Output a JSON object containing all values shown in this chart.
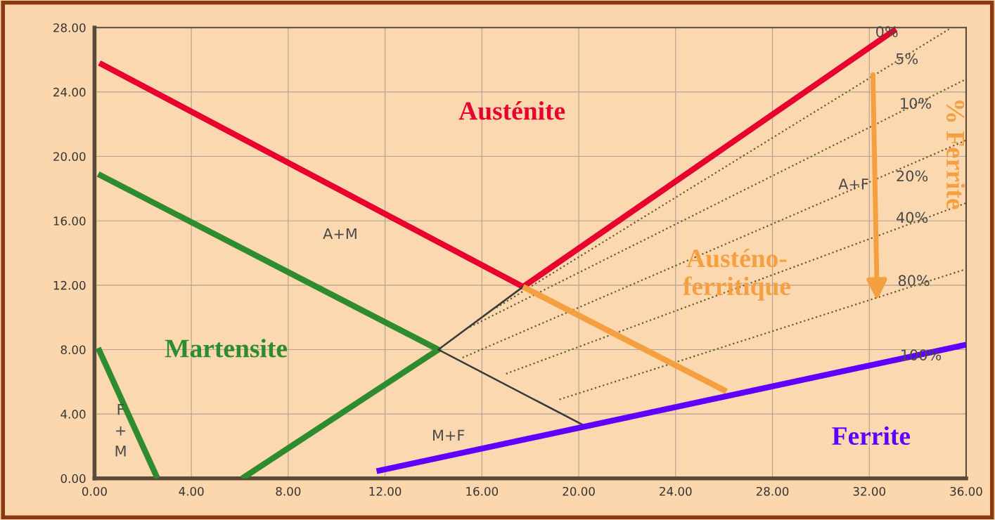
{
  "chart_data": {
    "type": "line",
    "xlim": [
      0,
      36
    ],
    "ylim": [
      0,
      28
    ],
    "xticks": [
      {
        "value": 0,
        "label": "0.00"
      },
      {
        "value": 4,
        "label": "4.00"
      },
      {
        "value": 8,
        "label": "8.00"
      },
      {
        "value": 12,
        "label": "12.00"
      },
      {
        "value": 16,
        "label": "16.00"
      },
      {
        "value": 20,
        "label": "20.00"
      },
      {
        "value": 24,
        "label": "24.00"
      },
      {
        "value": 28,
        "label": "28.00"
      },
      {
        "value": 32,
        "label": "32.00"
      },
      {
        "value": 36,
        "label": "36.00"
      }
    ],
    "yticks": [
      {
        "value": 0,
        "label": "0.00"
      },
      {
        "value": 4,
        "label": "4.00"
      },
      {
        "value": 8,
        "label": "8.00"
      },
      {
        "value": 12,
        "label": "12.00"
      },
      {
        "value": 16,
        "label": "16.00"
      },
      {
        "value": 20,
        "label": "20.00"
      },
      {
        "value": 24,
        "label": "24.00"
      },
      {
        "value": 28,
        "label": "28.00"
      }
    ],
    "grid": true,
    "marker": "none",
    "y2label": "% Ferrite",
    "series": [
      {
        "color": "#e8002e",
        "x": [
          0.2,
          17.7,
          33.1
        ],
        "values": [
          25.8,
          11.9,
          27.9
        ],
        "line_style": "solid"
      },
      {
        "color": "#2e8b2e",
        "x": [
          0.15,
          14.2,
          6.1
        ],
        "values": [
          18.9,
          8.0,
          0
        ],
        "line_style": "solid"
      },
      {
        "color": "#2e8b2e",
        "x": [
          0.15,
          2.6
        ],
        "values": [
          8.1,
          0
        ],
        "line_style": "solid"
      },
      {
        "color": "#3a3a3a",
        "x": [
          17.7,
          14.2,
          20.2
        ],
        "values": [
          11.9,
          8.0,
          3.3
        ],
        "line_style": "solid"
      },
      {
        "color": "#f5a040",
        "x": [
          17.7,
          26.1
        ],
        "values": [
          11.9,
          5.4
        ],
        "line_style": "solid"
      },
      {
        "color": "#6000ff",
        "x": [
          11.65,
          36
        ],
        "values": [
          0.45,
          8.3
        ],
        "line_style": "solid"
      },
      {
        "color": "#6b5a2a",
        "x": [
          16.6,
          35.4
        ],
        "values": [
          10.6,
          28.0
        ],
        "line_style": "dotted"
      },
      {
        "color": "#6b5a2a",
        "x": [
          15.5,
          36
        ],
        "values": [
          9.4,
          24.8
        ],
        "line_style": "dotted"
      },
      {
        "color": "#6b5a2a",
        "x": [
          15.2,
          36
        ],
        "values": [
          7.5,
          21.0
        ],
        "line_style": "dotted"
      },
      {
        "color": "#6b5a2a",
        "x": [
          17.0,
          36
        ],
        "values": [
          6.5,
          17.1
        ],
        "line_style": "dotted"
      },
      {
        "color": "#6b5a2a",
        "x": [
          19.2,
          36
        ],
        "values": [
          4.9,
          13.0
        ],
        "line_style": "dotted"
      }
    ],
    "annotations": [
      "Austénite",
      "A+M",
      "Martensite",
      "Austéno-\nferritique",
      "A+F",
      "M+F",
      "Ferrite",
      "F\n+\nM",
      "0%",
      "5%",
      "10%",
      "20%",
      "40%",
      "80%",
      "100%"
    ]
  }
}
